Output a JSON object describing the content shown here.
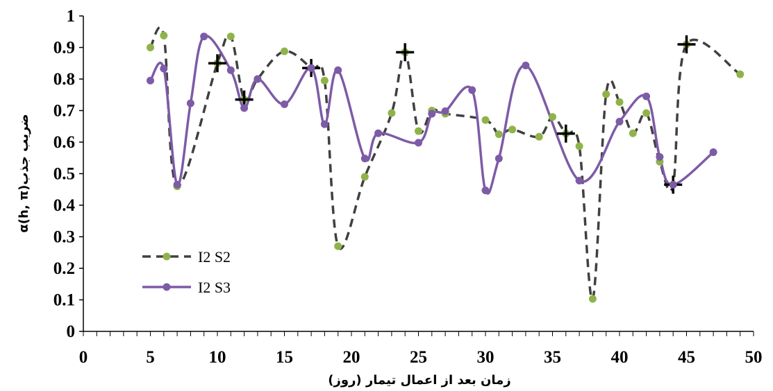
{
  "chart_data": {
    "type": "line",
    "xlabel": "زمان بعد از اعمال تیمار (روز)",
    "ylabel": "α(h, π)ضریب جذب",
    "xlim": [
      0,
      50
    ],
    "ylim": [
      0,
      1
    ],
    "x_ticks": [
      "0",
      "5",
      "10",
      "15",
      "20",
      "25",
      "30",
      "35",
      "40",
      "45",
      "50"
    ],
    "y_ticks": [
      "0",
      "0.1",
      "0.2",
      "0.3",
      "0.4",
      "0.5",
      "0.6",
      "0.7",
      "0.8",
      "0.9",
      "1"
    ],
    "grid": false,
    "legend_position": "bottom-left",
    "series": [
      {
        "name": "I2 S2",
        "style": "dashed",
        "line_color": "#404040",
        "marker_color": "#8fb34a",
        "points": [
          [
            5,
            0.9
          ],
          [
            6,
            0.938
          ],
          [
            7,
            0.46
          ],
          [
            10,
            0.85
          ],
          [
            11,
            0.935
          ],
          [
            12,
            0.735
          ],
          [
            13,
            0.8
          ],
          [
            15,
            0.888
          ],
          [
            17,
            0.835
          ],
          [
            18,
            0.795
          ],
          [
            19,
            0.27
          ],
          [
            21,
            0.49
          ],
          [
            23,
            0.692
          ],
          [
            24,
            0.885
          ],
          [
            25,
            0.635
          ],
          [
            26,
            0.7
          ],
          [
            27,
            0.69
          ],
          [
            30,
            0.67
          ],
          [
            31,
            0.625
          ],
          [
            32,
            0.64
          ],
          [
            34,
            0.617
          ],
          [
            35,
            0.68
          ],
          [
            36,
            0.627
          ],
          [
            37,
            0.587
          ],
          [
            38,
            0.103
          ],
          [
            39,
            0.752
          ],
          [
            40,
            0.727
          ],
          [
            41,
            0.628
          ],
          [
            42,
            0.692
          ],
          [
            43,
            0.538
          ],
          [
            44,
            0.465
          ],
          [
            45,
            0.91
          ],
          [
            49,
            0.815
          ]
        ],
        "plus_marks": [
          [
            10,
            0.85
          ],
          [
            12,
            0.735
          ],
          [
            17,
            0.835
          ],
          [
            24,
            0.885
          ],
          [
            36,
            0.627
          ],
          [
            44,
            0.465
          ],
          [
            45,
            0.91
          ]
        ]
      },
      {
        "name": "I2 S3",
        "style": "solid",
        "line_color": "#7d5ba6",
        "marker_color": "#7d5ba6",
        "points": [
          [
            5,
            0.795
          ],
          [
            6,
            0.833
          ],
          [
            7,
            0.465
          ],
          [
            8,
            0.723
          ],
          [
            9,
            0.935
          ],
          [
            11,
            0.828
          ],
          [
            12,
            0.708
          ],
          [
            13,
            0.8
          ],
          [
            15,
            0.72
          ],
          [
            17,
            0.835
          ],
          [
            18,
            0.657
          ],
          [
            19,
            0.828
          ],
          [
            21,
            0.548
          ],
          [
            22,
            0.628
          ],
          [
            25,
            0.598
          ],
          [
            26,
            0.69
          ],
          [
            27,
            0.698
          ],
          [
            29,
            0.765
          ],
          [
            30,
            0.447
          ],
          [
            31,
            0.548
          ],
          [
            33,
            0.843
          ],
          [
            37,
            0.478
          ],
          [
            40,
            0.665
          ],
          [
            42,
            0.745
          ],
          [
            43,
            0.553
          ],
          [
            44,
            0.465
          ],
          [
            47,
            0.568
          ]
        ]
      }
    ]
  }
}
